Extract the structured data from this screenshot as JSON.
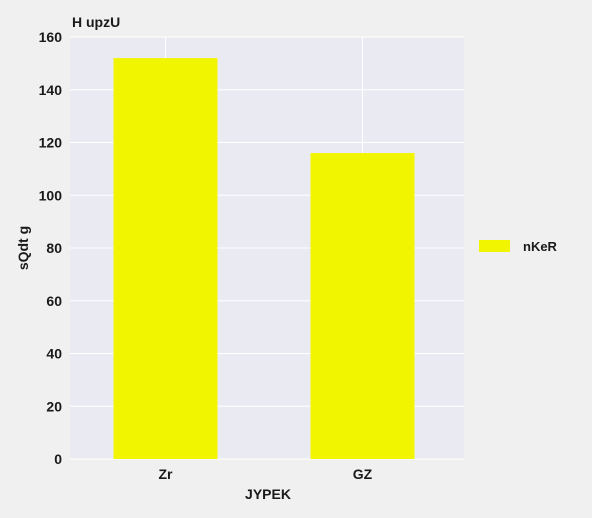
{
  "chart_data": {
    "type": "bar",
    "title": "H   upzU",
    "xlabel": "JYPEK",
    "ylabel": "sQdt g",
    "categories": [
      "Zr",
      "GZ"
    ],
    "series": [
      {
        "name": "nKeR",
        "values": [
          152,
          116
        ],
        "color": "#f2f500"
      }
    ],
    "ylim": [
      0,
      160
    ],
    "yticks": [
      0,
      20,
      40,
      60,
      80,
      100,
      120,
      140,
      160
    ],
    "grid": true,
    "legend_position": "right",
    "background_color": "#eaeaf2",
    "grid_color": "#ffffff"
  }
}
